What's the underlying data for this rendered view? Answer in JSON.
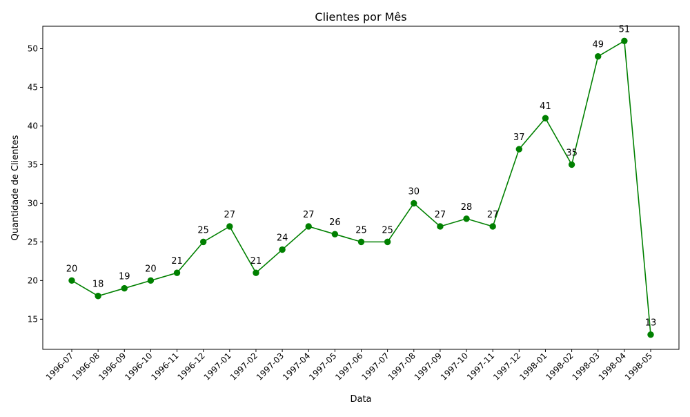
{
  "chart_data": {
    "type": "line",
    "title": "Clientes por Mês",
    "xlabel": "Data",
    "ylabel": "Quantidade de Clientes",
    "categories": [
      "1996-07",
      "1996-08",
      "1996-09",
      "1996-10",
      "1996-11",
      "1996-12",
      "1997-01",
      "1997-02",
      "1997-03",
      "1997-04",
      "1997-05",
      "1997-06",
      "1997-07",
      "1997-08",
      "1997-09",
      "1997-10",
      "1997-11",
      "1997-12",
      "1998-01",
      "1998-02",
      "1998-03",
      "1998-04",
      "1998-05"
    ],
    "series": [
      {
        "values": [
          20,
          18,
          19,
          20,
          21,
          25,
          27,
          21,
          24,
          27,
          26,
          25,
          25,
          30,
          27,
          28,
          27,
          37,
          41,
          35,
          49,
          51,
          13
        ],
        "color": "#008000",
        "marker": "circle"
      }
    ],
    "ylim": [
      11.1,
      52.9
    ],
    "yticks": [
      15,
      20,
      25,
      30,
      35,
      40,
      45,
      50
    ],
    "grid": false,
    "legend": "none",
    "data_labels": true
  }
}
